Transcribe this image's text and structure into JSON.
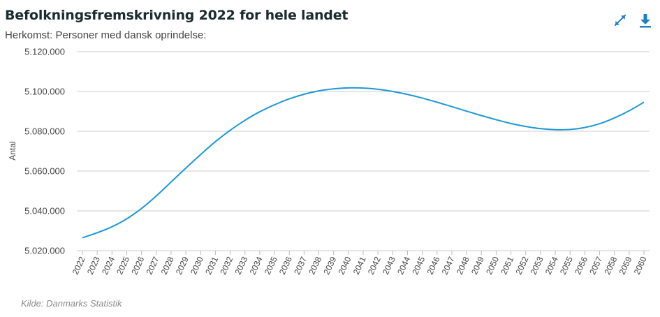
{
  "header": {
    "title": "Befolkningsfremskrivning 2022 for hele landet",
    "subtitle": "Herkomst: Personer med dansk oprindelse:"
  },
  "footer": {
    "source": "Kilde: Danmarks Statistik"
  },
  "icons": {
    "expand": "expand-arrows-icon",
    "download": "download-icon"
  },
  "colors": {
    "line": "#1f98d4",
    "accent": "#1f7fc1",
    "grid": "#cccccc"
  },
  "chart_data": {
    "type": "line",
    "ylabel": "Antal",
    "xlabel": "",
    "ylim": [
      5020000,
      5120000
    ],
    "yticks": [
      5020000,
      5040000,
      5060000,
      5080000,
      5100000,
      5120000
    ],
    "ytick_labels": [
      "5.020.000",
      "5.040.000",
      "5.060.000",
      "5.080.000",
      "5.100.000",
      "5.120.000"
    ],
    "grid": true,
    "categories": [
      "2022",
      "2023",
      "2024",
      "2025",
      "2026",
      "2027",
      "2028",
      "2029",
      "2030",
      "2031",
      "2032",
      "2033",
      "2034",
      "2035",
      "2036",
      "2037",
      "2038",
      "2039",
      "2040",
      "2041",
      "2042",
      "2043",
      "2044",
      "2045",
      "2046",
      "2047",
      "2048",
      "2049",
      "2050",
      "2051",
      "2052",
      "2053",
      "2054",
      "2055",
      "2056",
      "2057",
      "2058",
      "2059",
      "2060"
    ],
    "series": [
      {
        "values": [
          5026500,
          5029000,
          5032000,
          5036000,
          5041200,
          5047500,
          5054500,
          5061500,
          5068300,
          5074800,
          5080500,
          5085500,
          5089800,
          5093300,
          5096300,
          5098600,
          5100300,
          5101300,
          5101800,
          5101700,
          5101100,
          5100000,
          5098500,
          5096700,
          5094600,
          5092400,
          5090100,
          5087900,
          5085800,
          5083900,
          5082400,
          5081300,
          5080800,
          5080900,
          5081900,
          5083800,
          5086700,
          5090300,
          5094600
        ]
      }
    ]
  }
}
